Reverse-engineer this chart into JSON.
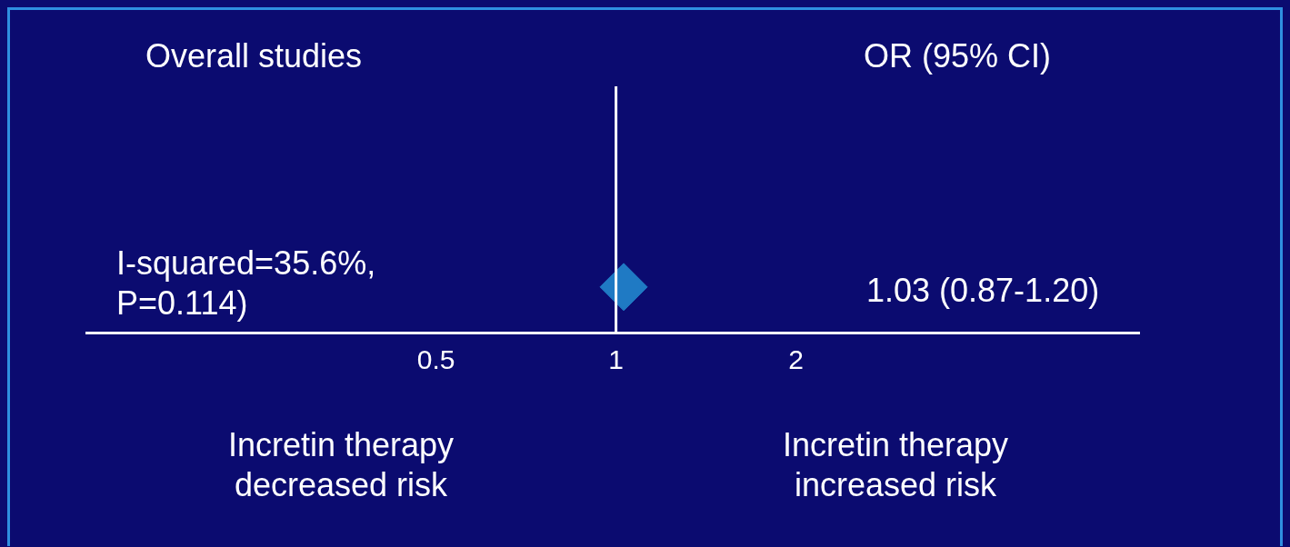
{
  "chart_data": {
    "type": "scatter",
    "orientation": "horizontal",
    "categories": [
      null
    ],
    "values": [
      1.03
    ],
    "color": "#1f7ac4",
    "marker": "diamond",
    "log": "x",
    "xlim": [
      0.13,
      7.5
    ],
    "xticks": [
      0.5,
      1,
      2
    ],
    "tick_labels": "x",
    "ref_lines": [
      {
        "axis": "x",
        "value": 1,
        "color": "#ffffff"
      }
    ],
    "annotations": [
      "Overall studies",
      "OR (95% CI)",
      "I-squared=35.6%, P=0.114)",
      "1.03 (0.87-1.20)",
      "Incretin therapy decreased risk",
      "Incretin therapy increased risk"
    ]
  }
}
